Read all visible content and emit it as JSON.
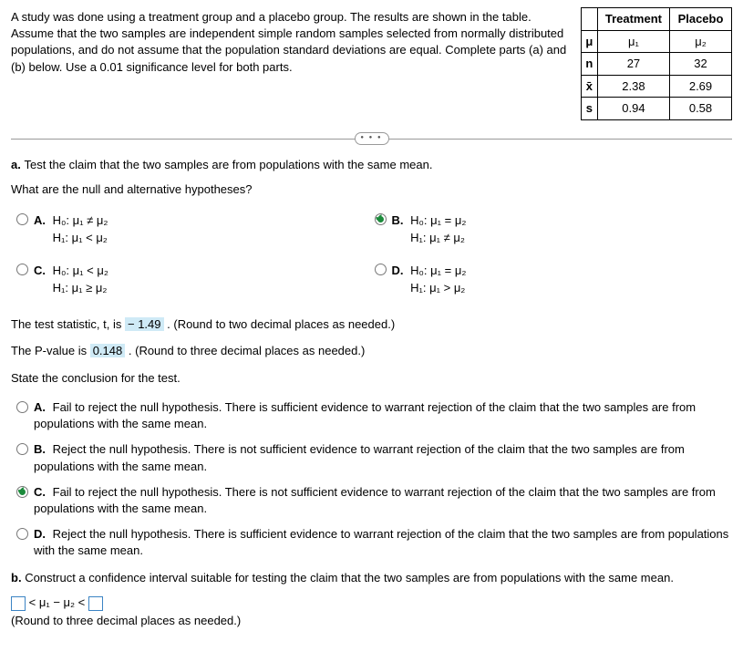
{
  "intro": "A study was done using a treatment group and a placebo group. The results are shown in the table. Assume that the two samples are independent simple random samples selected from normally distributed populations, and do not assume that the population standard deviations are equal. Complete parts (a) and (b) below. Use a 0.01 significance level for both parts.",
  "table": {
    "headers": {
      "c1": "Treatment",
      "c2": "Placebo"
    },
    "rows": {
      "mu": {
        "label": "μ",
        "c1": "μ₁",
        "c2": "μ₂"
      },
      "n": {
        "label": "n",
        "c1": "27",
        "c2": "32"
      },
      "x": {
        "label": "x̄",
        "c1": "2.38",
        "c2": "2.69"
      },
      "s": {
        "label": "s",
        "c1": "0.94",
        "c2": "0.58"
      }
    }
  },
  "a_label": "a.",
  "a_prompt": "Test the claim that the two samples are from populations with the same mean.",
  "hyp_prompt": "What are the null and alternative hypotheses?",
  "opts": {
    "A": {
      "letter": "A.",
      "line1": "H₀: μ₁ ≠ μ₂",
      "line2": "H₁: μ₁ < μ₂"
    },
    "B": {
      "letter": "B.",
      "line1": "H₀: μ₁ = μ₂",
      "line2": "H₁: μ₁ ≠ μ₂"
    },
    "C": {
      "letter": "C.",
      "line1": "H₀: μ₁ < μ₂",
      "line2": "H₁: μ₁ ≥ μ₂"
    },
    "D": {
      "letter": "D.",
      "line1": "H₀: μ₁ = μ₂",
      "line2": "H₁: μ₁ > μ₂"
    }
  },
  "tstat": {
    "pre": "The test statistic, t, is ",
    "val": " − 1.49",
    "post": ". ",
    "hint": "(Round to two decimal places as needed.)"
  },
  "pval": {
    "pre": "The P-value is ",
    "val": "0.148",
    "post": ". ",
    "hint": "(Round to three decimal places as needed.)"
  },
  "concl_prompt": "State the conclusion for the test.",
  "concl": {
    "A": {
      "letter": "A.",
      "text": "Fail to reject the null hypothesis. There is sufficient evidence to warrant rejection of the claim that the two samples are from populations with the same mean."
    },
    "B": {
      "letter": "B.",
      "text": "Reject the null hypothesis. There is not sufficient evidence to warrant rejection of the claim that the two samples are from populations with the same mean."
    },
    "C": {
      "letter": "C.",
      "text": "Fail to reject the null hypothesis. There is not sufficient evidence to warrant rejection of the claim that the two samples are from populations with the same mean."
    },
    "D": {
      "letter": "D.",
      "text": "Reject the null hypothesis. There is sufficient evidence to warrant rejection of the claim that the two samples are from populations with the same mean."
    }
  },
  "b_label": "b.",
  "b_prompt": "Construct a confidence interval suitable for testing the claim that the two samples are from populations with the same mean.",
  "ci_mid": " < μ₁ − μ₂ < ",
  "ci_hint": "(Round to three decimal places as needed.)",
  "style": {
    "highlight_bg": "#cfeaf6",
    "radio_selected_color": "#1b8a3b",
    "input_border": "#3b84c4",
    "body_width": 815
  }
}
